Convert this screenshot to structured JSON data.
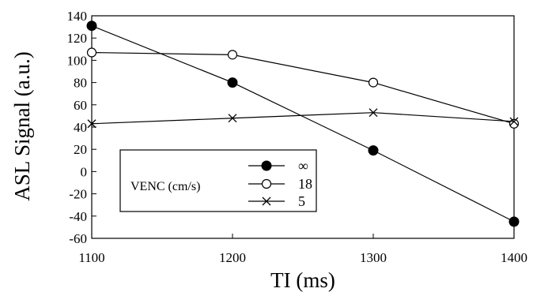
{
  "chart_data": {
    "type": "line",
    "xlabel": "TI (ms)",
    "ylabel": "ASL Signal (a.u.)",
    "x": [
      1100,
      1200,
      1300,
      1400
    ],
    "xlim": [
      1100,
      1400
    ],
    "ylim": [
      -60,
      140
    ],
    "xticks": [
      1100,
      1200,
      1300,
      1400
    ],
    "yticks": [
      -60,
      -40,
      -20,
      0,
      20,
      40,
      60,
      80,
      100,
      120,
      140
    ],
    "grid": false,
    "legend": {
      "title": "VENC (cm/s)",
      "placement": "bottom-left"
    },
    "series": [
      {
        "name": "∞",
        "marker": "filled-circle",
        "values": [
          131,
          80,
          19,
          -45
        ]
      },
      {
        "name": "18",
        "marker": "open-circle",
        "values": [
          107,
          105,
          80,
          43
        ]
      },
      {
        "name": "5",
        "marker": "x",
        "values": [
          43,
          48,
          53,
          45
        ]
      }
    ],
    "colors": {
      "line": "#000000",
      "background": "#ffffff"
    }
  }
}
